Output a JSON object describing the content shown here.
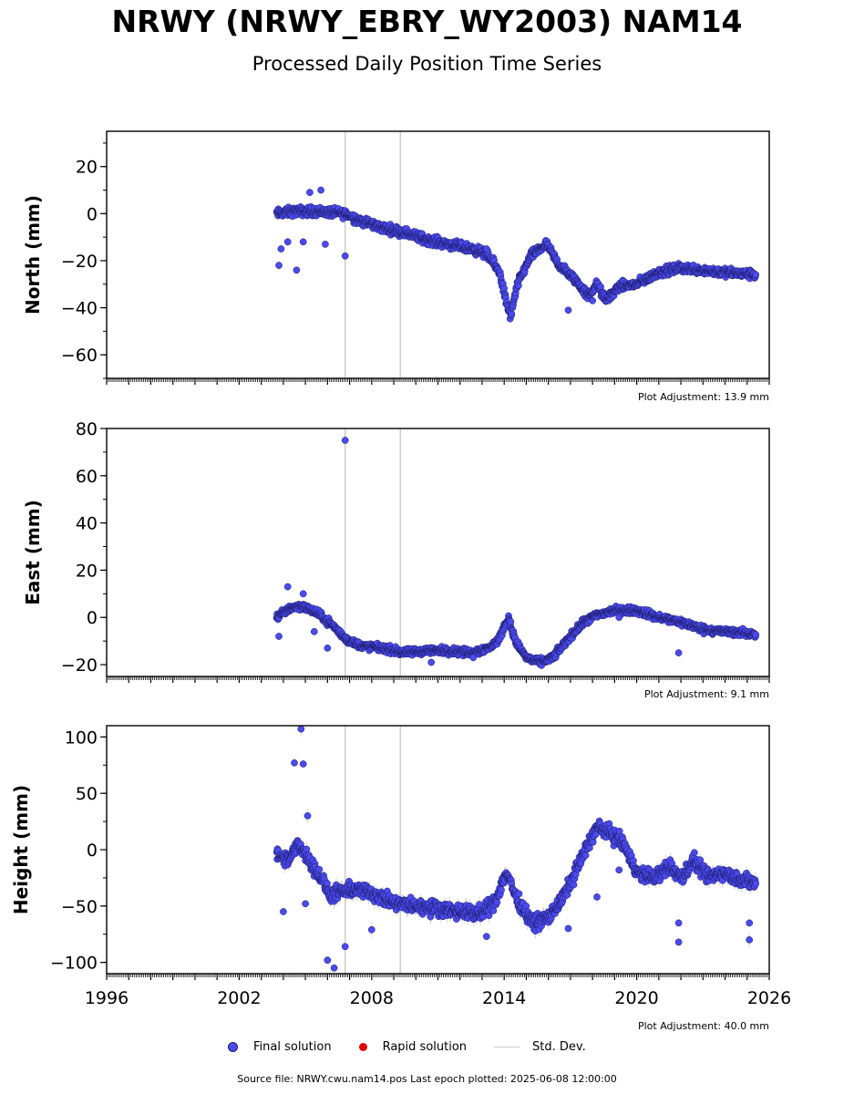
{
  "title": "NRWY (NRWY_EBRY_WY2003) NAM14",
  "subtitle": "Processed Daily Position Time Series",
  "legend": {
    "final_label": "Final solution",
    "rapid_label": "Rapid solution",
    "std_label": "Std. Dev."
  },
  "colors": {
    "final": "#4a4af0",
    "final_edge": "#1a1a60",
    "rapid": "#e00000",
    "std": "#cccccc"
  },
  "footer": "Source file: NRWY.cwu.nam14.pos  Last epoch plotted: 2025-06-08 12:00:00",
  "chart_data": [
    {
      "type": "scatter",
      "ylabel": "North (mm)",
      "xlim": [
        1996,
        2026
      ],
      "ylim": [
        -70,
        35
      ],
      "yticks": [
        20,
        0,
        -20,
        -40,
        -60
      ],
      "ytick_labels": [
        "20",
        "0",
        "−20",
        "−40",
        "−60"
      ],
      "adjustment": "Plot Adjustment: 13.9 mm",
      "vlines": [
        2006.8,
        2009.3
      ],
      "trend": [
        [
          2003.7,
          0
        ],
        [
          2004.5,
          1
        ],
        [
          2005.5,
          1
        ],
        [
          2006.8,
          0
        ],
        [
          2007.5,
          -3
        ],
        [
          2008.5,
          -6
        ],
        [
          2009.5,
          -8
        ],
        [
          2010.5,
          -11
        ],
        [
          2011.5,
          -13
        ],
        [
          2012.5,
          -15
        ],
        [
          2013.2,
          -17
        ],
        [
          2013.8,
          -25
        ],
        [
          2014.1,
          -38
        ],
        [
          2014.3,
          -44
        ],
        [
          2014.6,
          -30
        ],
        [
          2015.2,
          -18
        ],
        [
          2015.9,
          -13
        ],
        [
          2016.5,
          -22
        ],
        [
          2017.2,
          -28
        ],
        [
          2017.8,
          -35
        ],
        [
          2018.2,
          -30
        ],
        [
          2018.6,
          -37
        ],
        [
          2019.2,
          -31
        ],
        [
          2020.0,
          -30
        ],
        [
          2021.0,
          -25
        ],
        [
          2022.0,
          -23
        ],
        [
          2023.0,
          -24
        ],
        [
          2024.0,
          -25
        ],
        [
          2025.4,
          -26
        ]
      ],
      "outliers": [
        [
          2003.8,
          -22
        ],
        [
          2004.6,
          -24
        ],
        [
          2005.7,
          10
        ],
        [
          2005.2,
          9
        ],
        [
          2006.8,
          -18
        ],
        [
          2003.9,
          -15
        ],
        [
          2004.2,
          -12
        ],
        [
          2004.9,
          -12
        ],
        [
          2005.9,
          -13
        ],
        [
          2013.2,
          -15
        ],
        [
          2016.9,
          -41
        ],
        [
          2018.0,
          -37
        ]
      ]
    },
    {
      "type": "scatter",
      "ylabel": "East (mm)",
      "xlim": [
        1996,
        2026
      ],
      "ylim": [
        -25,
        80
      ],
      "yticks": [
        80,
        60,
        40,
        20,
        0,
        -20
      ],
      "ytick_labels": [
        "80",
        "60",
        "40",
        "20",
        "0",
        "−20"
      ],
      "adjustment": "Plot Adjustment: 9.1 mm",
      "vlines": [
        2006.8,
        2009.3
      ],
      "trend": [
        [
          2003.7,
          0
        ],
        [
          2004.3,
          4
        ],
        [
          2004.8,
          5
        ],
        [
          2005.5,
          2
        ],
        [
          2006.2,
          -3
        ],
        [
          2006.8,
          -9
        ],
        [
          2007.5,
          -12
        ],
        [
          2008.5,
          -13
        ],
        [
          2009.5,
          -15
        ],
        [
          2010.5,
          -14
        ],
        [
          2011.5,
          -14
        ],
        [
          2012.5,
          -15
        ],
        [
          2013.3,
          -13
        ],
        [
          2013.7,
          -10
        ],
        [
          2014.2,
          0
        ],
        [
          2014.5,
          -10
        ],
        [
          2015.0,
          -17
        ],
        [
          2015.6,
          -19
        ],
        [
          2016.2,
          -17
        ],
        [
          2017.0,
          -8
        ],
        [
          2017.6,
          -2
        ],
        [
          2018.2,
          1
        ],
        [
          2019.0,
          3
        ],
        [
          2020.0,
          3
        ],
        [
          2021.0,
          0
        ],
        [
          2022.0,
          -2
        ],
        [
          2023.0,
          -5
        ],
        [
          2024.0,
          -6
        ],
        [
          2025.4,
          -7
        ]
      ],
      "outliers": [
        [
          2006.8,
          75
        ],
        [
          2004.2,
          13
        ],
        [
          2004.9,
          10
        ],
        [
          2006.0,
          -13
        ],
        [
          2003.8,
          -8
        ],
        [
          2005.4,
          -6
        ],
        [
          2021.9,
          -15
        ],
        [
          2010.7,
          -19
        ],
        [
          2019.2,
          0
        ],
        [
          2012.6,
          -17
        ]
      ]
    },
    {
      "type": "scatter",
      "ylabel": "Height (mm)",
      "xlim": [
        1996,
        2026
      ],
      "ylim": [
        -110,
        110
      ],
      "yticks": [
        100,
        50,
        0,
        -50,
        -100
      ],
      "ytick_labels": [
        "100",
        "50",
        "0",
        "−50",
        "−100"
      ],
      "xticks": [
        1996,
        2002,
        2008,
        2014,
        2020,
        2026
      ],
      "xtick_labels": [
        "1996",
        "2002",
        "2008",
        "2014",
        "2020",
        "2026"
      ],
      "adjustment": "Plot Adjustment: 40.0 mm",
      "vlines": [
        2006.8,
        2009.3
      ],
      "trend": [
        [
          2003.7,
          -5
        ],
        [
          2004.2,
          -10
        ],
        [
          2004.7,
          5
        ],
        [
          2005.2,
          -10
        ],
        [
          2005.7,
          -25
        ],
        [
          2006.1,
          -40
        ],
        [
          2006.6,
          -38
        ],
        [
          2007.2,
          -35
        ],
        [
          2008.0,
          -38
        ],
        [
          2009.0,
          -48
        ],
        [
          2010.0,
          -50
        ],
        [
          2011.0,
          -52
        ],
        [
          2012.0,
          -55
        ],
        [
          2013.0,
          -57
        ],
        [
          2013.6,
          -45
        ],
        [
          2014.1,
          -20
        ],
        [
          2014.6,
          -45
        ],
        [
          2015.3,
          -65
        ],
        [
          2016.0,
          -60
        ],
        [
          2016.6,
          -45
        ],
        [
          2017.2,
          -20
        ],
        [
          2017.8,
          5
        ],
        [
          2018.2,
          20
        ],
        [
          2018.8,
          15
        ],
        [
          2019.4,
          5
        ],
        [
          2020.0,
          -20
        ],
        [
          2020.8,
          -25
        ],
        [
          2021.5,
          -15
        ],
        [
          2022.0,
          -25
        ],
        [
          2022.6,
          -10
        ],
        [
          2023.2,
          -25
        ],
        [
          2023.8,
          -20
        ],
        [
          2024.5,
          -25
        ],
        [
          2025.4,
          -30
        ]
      ],
      "outliers": [
        [
          2004.8,
          107
        ],
        [
          2004.5,
          77
        ],
        [
          2004.9,
          76
        ],
        [
          2005.1,
          30
        ],
        [
          2006.0,
          -98
        ],
        [
          2006.3,
          -105
        ],
        [
          2006.8,
          -86
        ],
        [
          2005.0,
          -48
        ],
        [
          2004.0,
          -55
        ],
        [
          2025.1,
          -80
        ],
        [
          2025.1,
          -65
        ],
        [
          2019.2,
          -18
        ],
        [
          2018.2,
          -42
        ],
        [
          2021.9,
          -82
        ],
        [
          2021.9,
          -65
        ],
        [
          2008.0,
          -71
        ],
        [
          2013.2,
          -77
        ],
        [
          2016.9,
          -70
        ]
      ]
    }
  ]
}
